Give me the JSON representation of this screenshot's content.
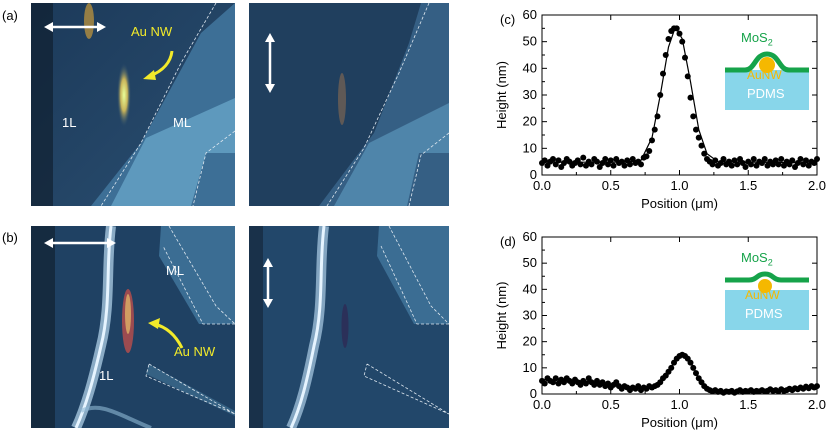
{
  "figure": {
    "labels": {
      "a": "(a)",
      "b": "(b)",
      "c": "(c)",
      "d": "(d)"
    },
    "micrographs": {
      "a": {
        "nanowire_label": "Au NW",
        "region_1": "1L",
        "region_2": "ML"
      },
      "b": {
        "nanowire_label": "Au NW",
        "region_1": "1L",
        "region_2": "ML"
      }
    },
    "insets": {
      "c": {
        "mos2": "MoS",
        "mos2_sub": "2",
        "aunw": "AuNW",
        "pdms": "PDMS"
      },
      "d": {
        "mos2": "MoS",
        "mos2_sub": "2",
        "aunw": "AuNW",
        "pdms": "PDMS"
      }
    },
    "colors": {
      "mos2_green": "#16a34a",
      "gold": "#f5b800",
      "pdms_blue": "#88d6ea",
      "arrow_yellow": "#f2ea2a"
    }
  },
  "chart_data": [
    {
      "type": "scatter",
      "panel": "(c)",
      "xlabel_prefix": "Position (",
      "xlabel_unit": "μm",
      "xlabel_suffix": ")",
      "ylabel": "Height (nm)",
      "xlim": [
        0,
        2.0
      ],
      "ylim": [
        0,
        60
      ],
      "xticks": [
        "0.0",
        "0.5",
        "1.0",
        "1.5",
        "2.0"
      ],
      "yticks": [
        "0",
        "10",
        "20",
        "30",
        "40",
        "50",
        "60"
      ],
      "points": [
        [
          0.0,
          4.5
        ],
        [
          0.02,
          5.5
        ],
        [
          0.04,
          3.5
        ],
        [
          0.06,
          5
        ],
        [
          0.08,
          6
        ],
        [
          0.1,
          4
        ],
        [
          0.12,
          5.5
        ],
        [
          0.14,
          3
        ],
        [
          0.16,
          4.5
        ],
        [
          0.18,
          6
        ],
        [
          0.2,
          5
        ],
        [
          0.22,
          3.5
        ],
        [
          0.24,
          4.5
        ],
        [
          0.26,
          5.5
        ],
        [
          0.28,
          4
        ],
        [
          0.3,
          6.5
        ],
        [
          0.32,
          3.5
        ],
        [
          0.34,
          5
        ],
        [
          0.36,
          4
        ],
        [
          0.38,
          6
        ],
        [
          0.4,
          5
        ],
        [
          0.42,
          3
        ],
        [
          0.44,
          4.5
        ],
        [
          0.46,
          6
        ],
        [
          0.48,
          4
        ],
        [
          0.5,
          5.5
        ],
        [
          0.52,
          3.5
        ],
        [
          0.54,
          6
        ],
        [
          0.56,
          4.5
        ],
        [
          0.58,
          5
        ],
        [
          0.6,
          3.5
        ],
        [
          0.62,
          5.5
        ],
        [
          0.64,
          4
        ],
        [
          0.66,
          6
        ],
        [
          0.68,
          4.5
        ],
        [
          0.7,
          5
        ],
        [
          0.72,
          4
        ],
        [
          0.74,
          6.5
        ],
        [
          0.76,
          7
        ],
        [
          0.78,
          9
        ],
        [
          0.8,
          13
        ],
        [
          0.82,
          17
        ],
        [
          0.84,
          22
        ],
        [
          0.86,
          30
        ],
        [
          0.88,
          38
        ],
        [
          0.9,
          45
        ],
        [
          0.92,
          51
        ],
        [
          0.94,
          54
        ],
        [
          0.96,
          55
        ],
        [
          0.98,
          55
        ],
        [
          1.0,
          53
        ],
        [
          1.02,
          50
        ],
        [
          1.04,
          44
        ],
        [
          1.06,
          37
        ],
        [
          1.08,
          29
        ],
        [
          1.1,
          22
        ],
        [
          1.12,
          17
        ],
        [
          1.14,
          14
        ],
        [
          1.16,
          11
        ],
        [
          1.18,
          8
        ],
        [
          1.2,
          6
        ],
        [
          1.22,
          5
        ],
        [
          1.24,
          4
        ],
        [
          1.26,
          5.5
        ],
        [
          1.28,
          3.5
        ],
        [
          1.3,
          4.5
        ],
        [
          1.32,
          6
        ],
        [
          1.34,
          4
        ],
        [
          1.36,
          5
        ],
        [
          1.38,
          3.5
        ],
        [
          1.4,
          5.5
        ],
        [
          1.42,
          4
        ],
        [
          1.44,
          6
        ],
        [
          1.46,
          4.5
        ],
        [
          1.48,
          3
        ],
        [
          1.5,
          5
        ],
        [
          1.52,
          4
        ],
        [
          1.54,
          6
        ],
        [
          1.56,
          3.5
        ],
        [
          1.58,
          5
        ],
        [
          1.6,
          4.5
        ],
        [
          1.62,
          6
        ],
        [
          1.64,
          3.5
        ],
        [
          1.66,
          5
        ],
        [
          1.68,
          4
        ],
        [
          1.7,
          5.5
        ],
        [
          1.72,
          4
        ],
        [
          1.74,
          6
        ],
        [
          1.76,
          3.5
        ],
        [
          1.78,
          5
        ],
        [
          1.8,
          4
        ],
        [
          1.82,
          5.5
        ],
        [
          1.84,
          3
        ],
        [
          1.86,
          4.5
        ],
        [
          1.88,
          6
        ],
        [
          1.9,
          4
        ],
        [
          1.92,
          5.5
        ],
        [
          1.94,
          3.5
        ],
        [
          1.96,
          5
        ],
        [
          1.98,
          4.5
        ],
        [
          2.0,
          6
        ]
      ],
      "fit": [
        [
          0,
          4.8
        ],
        [
          0.6,
          4.8
        ],
        [
          0.72,
          5.5
        ],
        [
          0.8,
          14
        ],
        [
          0.86,
          30
        ],
        [
          0.92,
          48
        ],
        [
          0.97,
          55.5
        ],
        [
          1.02,
          51
        ],
        [
          1.08,
          35
        ],
        [
          1.14,
          17
        ],
        [
          1.2,
          8
        ],
        [
          1.28,
          5
        ],
        [
          2.0,
          4.5
        ]
      ]
    },
    {
      "type": "scatter",
      "panel": "(d)",
      "xlabel_prefix": "Position (",
      "xlabel_unit": "μm",
      "xlabel_suffix": ")",
      "ylabel": "Height (nm)",
      "xlim": [
        0,
        2.0
      ],
      "ylim": [
        0,
        60
      ],
      "xticks": [
        "0.0",
        "0.5",
        "1.0",
        "1.5",
        "2.0"
      ],
      "yticks": [
        "0",
        "10",
        "20",
        "30",
        "40",
        "50",
        "60"
      ],
      "points": [
        [
          0.0,
          5
        ],
        [
          0.02,
          4
        ],
        [
          0.04,
          6
        ],
        [
          0.06,
          5
        ],
        [
          0.08,
          4.5
        ],
        [
          0.1,
          6
        ],
        [
          0.12,
          4
        ],
        [
          0.14,
          5.5
        ],
        [
          0.16,
          4.5
        ],
        [
          0.18,
          6
        ],
        [
          0.2,
          5
        ],
        [
          0.22,
          4
        ],
        [
          0.24,
          5.5
        ],
        [
          0.26,
          4.5
        ],
        [
          0.28,
          3.5
        ],
        [
          0.3,
          5
        ],
        [
          0.32,
          4
        ],
        [
          0.34,
          6
        ],
        [
          0.36,
          4.5
        ],
        [
          0.38,
          3.5
        ],
        [
          0.4,
          5
        ],
        [
          0.42,
          3.5
        ],
        [
          0.44,
          4.5
        ],
        [
          0.46,
          3
        ],
        [
          0.48,
          4
        ],
        [
          0.5,
          2.5
        ],
        [
          0.52,
          3.5
        ],
        [
          0.54,
          4.5
        ],
        [
          0.56,
          3
        ],
        [
          0.58,
          2
        ],
        [
          0.6,
          3
        ],
        [
          0.62,
          2.5
        ],
        [
          0.64,
          1.5
        ],
        [
          0.66,
          2.5
        ],
        [
          0.68,
          2
        ],
        [
          0.7,
          3
        ],
        [
          0.72,
          1.5
        ],
        [
          0.74,
          2.5
        ],
        [
          0.76,
          2
        ],
        [
          0.78,
          3
        ],
        [
          0.8,
          2.5
        ],
        [
          0.82,
          3
        ],
        [
          0.84,
          3.5
        ],
        [
          0.86,
          4.5
        ],
        [
          0.88,
          6
        ],
        [
          0.9,
          7
        ],
        [
          0.92,
          8.5
        ],
        [
          0.94,
          10
        ],
        [
          0.96,
          12
        ],
        [
          0.98,
          13.5
        ],
        [
          1.0,
          14.5
        ],
        [
          1.02,
          15
        ],
        [
          1.04,
          14.5
        ],
        [
          1.06,
          13.5
        ],
        [
          1.08,
          12
        ],
        [
          1.1,
          10
        ],
        [
          1.12,
          8
        ],
        [
          1.14,
          6
        ],
        [
          1.16,
          4.5
        ],
        [
          1.18,
          3
        ],
        [
          1.2,
          2
        ],
        [
          1.22,
          1.5
        ],
        [
          1.24,
          1
        ],
        [
          1.26,
          1.5
        ],
        [
          1.28,
          0.8
        ],
        [
          1.3,
          1.2
        ],
        [
          1.32,
          0.5
        ],
        [
          1.34,
          1
        ],
        [
          1.36,
          0.8
        ],
        [
          1.38,
          1.2
        ],
        [
          1.4,
          0.5
        ],
        [
          1.42,
          1
        ],
        [
          1.44,
          1.5
        ],
        [
          1.46,
          0.8
        ],
        [
          1.48,
          1.2
        ],
        [
          1.5,
          1
        ],
        [
          1.52,
          1.5
        ],
        [
          1.54,
          0.8
        ],
        [
          1.56,
          1.2
        ],
        [
          1.58,
          1
        ],
        [
          1.6,
          1.5
        ],
        [
          1.62,
          1
        ],
        [
          1.64,
          1.2
        ],
        [
          1.66,
          1.8
        ],
        [
          1.68,
          1.2
        ],
        [
          1.7,
          1.5
        ],
        [
          1.72,
          1
        ],
        [
          1.74,
          1.8
        ],
        [
          1.76,
          1.2
        ],
        [
          1.78,
          1.5
        ],
        [
          1.8,
          2
        ],
        [
          1.82,
          1.5
        ],
        [
          1.84,
          2.2
        ],
        [
          1.86,
          1.8
        ],
        [
          1.88,
          2.5
        ],
        [
          1.9,
          2
        ],
        [
          1.92,
          2.8
        ],
        [
          1.94,
          2.2
        ],
        [
          1.96,
          3
        ],
        [
          1.98,
          2.5
        ],
        [
          2.0,
          3
        ]
      ],
      "fit": [
        [
          0,
          5.5
        ],
        [
          0.3,
          5
        ],
        [
          0.5,
          3.5
        ],
        [
          0.7,
          2.5
        ],
        [
          0.82,
          3
        ],
        [
          0.9,
          7
        ],
        [
          0.96,
          12
        ],
        [
          1.02,
          15
        ],
        [
          1.08,
          12.5
        ],
        [
          1.14,
          6
        ],
        [
          1.2,
          2.5
        ],
        [
          1.3,
          1
        ],
        [
          1.6,
          1.2
        ],
        [
          2.0,
          3
        ]
      ]
    }
  ]
}
